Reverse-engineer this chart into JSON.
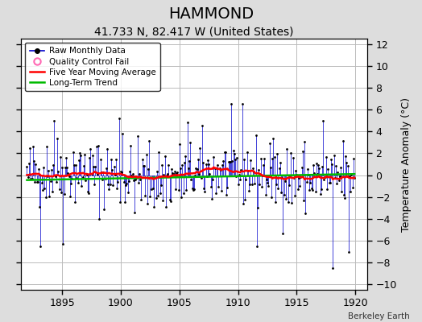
{
  "title": "HAMMOND",
  "subtitle": "41.733 N, 82.417 W (United States)",
  "ylabel": "Temperature Anomaly (°C)",
  "xlabel": "",
  "credit": "Berkeley Earth",
  "xlim": [
    1891.5,
    1921.0
  ],
  "ylim": [
    -10.5,
    12.5
  ],
  "yticks": [
    -10,
    -8,
    -6,
    -4,
    -2,
    0,
    2,
    4,
    6,
    8,
    10,
    12
  ],
  "xticks": [
    1895,
    1900,
    1905,
    1910,
    1915,
    1920
  ],
  "raw_color": "#0000cc",
  "dot_color": "#000000",
  "ma_color": "#ff0000",
  "trend_color": "#00bb00",
  "qc_color": "#ff69b4",
  "bg_color": "#dddddd",
  "plot_bg_color": "#ffffff",
  "grid_color": "#bbbbbb",
  "legend_labels": [
    "Raw Monthly Data",
    "Quality Control Fail",
    "Five Year Moving Average",
    "Long-Term Trend"
  ],
  "title_fontsize": 14,
  "subtitle_fontsize": 10,
  "tick_fontsize": 9,
  "ylabel_fontsize": 9,
  "start_year": 1892,
  "end_year": 1920,
  "seed": 42
}
